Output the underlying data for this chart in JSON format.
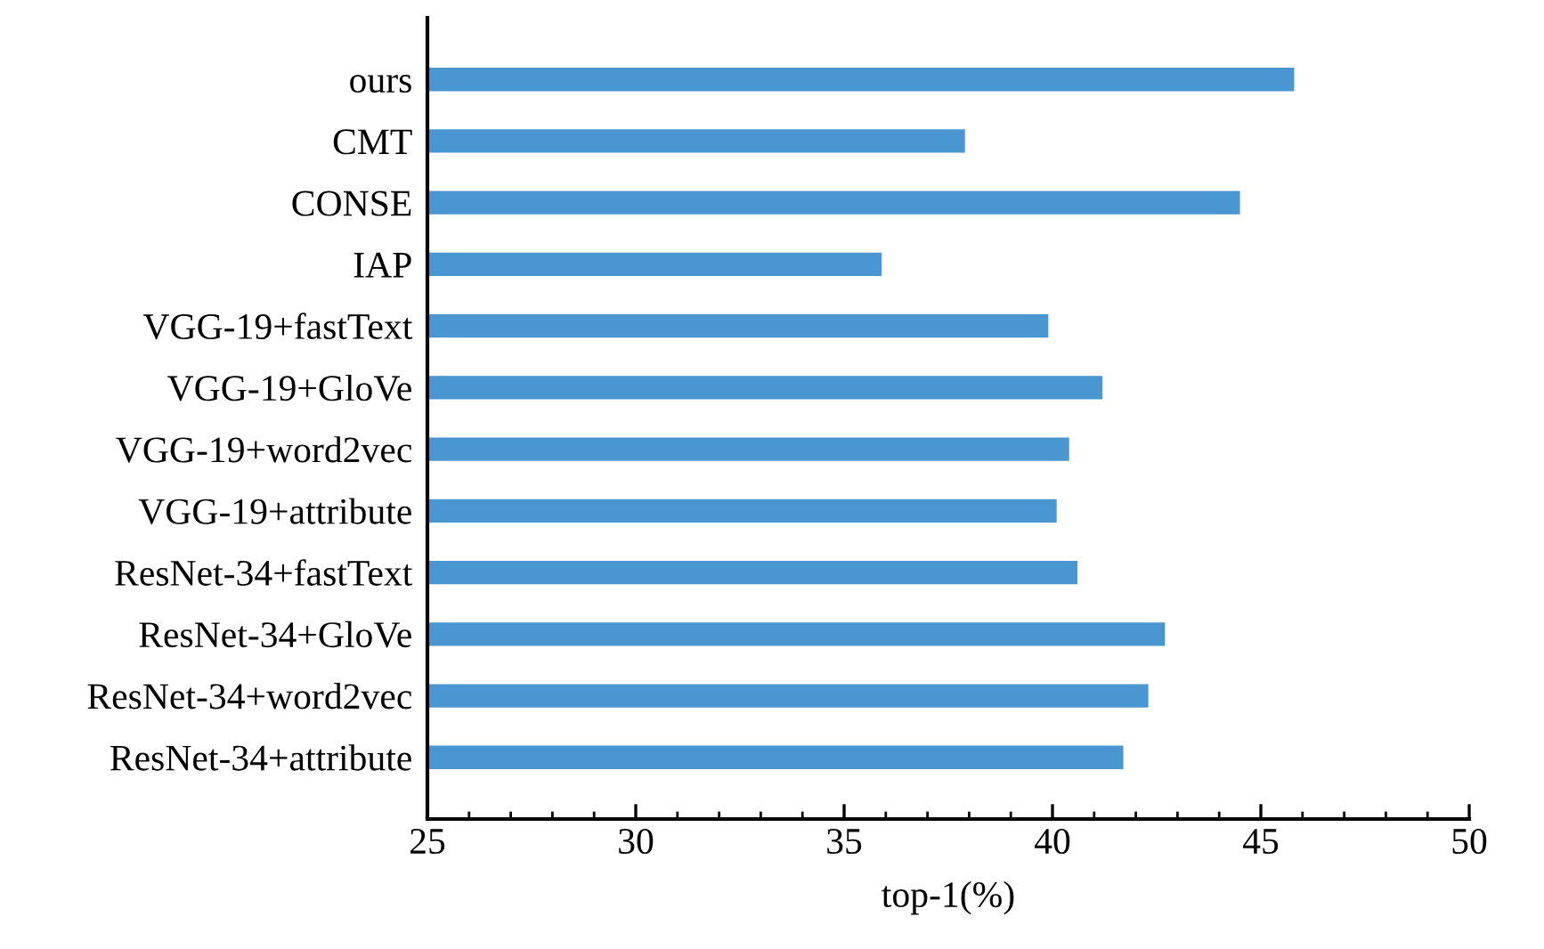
{
  "chart_data": {
    "type": "bar",
    "orientation": "horizontal",
    "xlabel": "top-1(%)",
    "categories": [
      "ours",
      "CMT",
      "CONSE",
      "IAP",
      "VGG-19+fastText",
      "VGG-19+GloVe",
      "VGG-19+word2vec",
      "VGG-19+attribute",
      "ResNet-34+fastText",
      "ResNet-34+GloVe",
      "ResNet-34+word2vec",
      "ResNet-34+attribute"
    ],
    "values": [
      45.8,
      37.9,
      44.5,
      35.9,
      39.9,
      41.2,
      40.4,
      40.1,
      40.6,
      42.7,
      42.3,
      41.7
    ],
    "color": "#4a96d0",
    "xlim": [
      25,
      50
    ],
    "xticks": [
      25,
      30,
      35,
      40,
      45,
      50
    ],
    "grid": false
  }
}
